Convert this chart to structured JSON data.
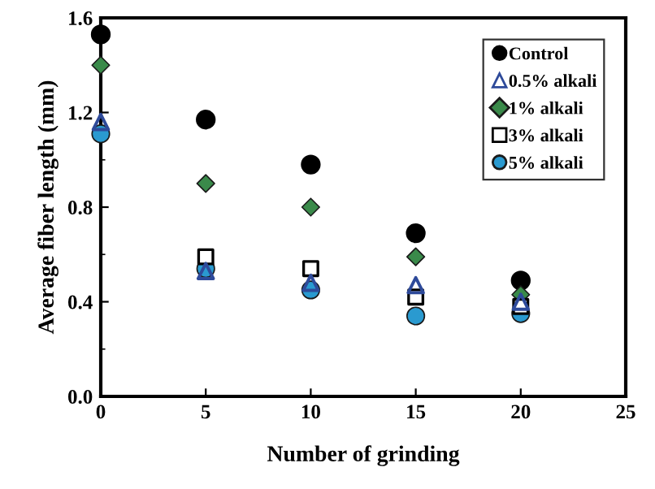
{
  "chart_data": {
    "type": "scatter",
    "xlabel": "Number of grinding",
    "ylabel": "Average fiber length (mm)",
    "x": [
      0,
      5,
      10,
      15,
      20
    ],
    "series": [
      {
        "name": "Control",
        "color": "#000000",
        "marker": "circle",
        "values": [
          1.53,
          1.17,
          0.98,
          0.69,
          0.49
        ]
      },
      {
        "name": "0.5% alkali",
        "color": "#2e4a9a",
        "marker": "triangle",
        "values": [
          1.16,
          0.53,
          0.48,
          0.47,
          0.4
        ]
      },
      {
        "name": "1% alkali",
        "color": "#3a8a4a",
        "marker": "diamond",
        "values": [
          1.4,
          0.9,
          0.8,
          0.59,
          0.43
        ]
      },
      {
        "name": "3% alkali",
        "color": "#000000",
        "marker": "square",
        "values": [
          null,
          0.59,
          0.54,
          0.42,
          0.38
        ]
      },
      {
        "name": "5% alkali",
        "color": "#2a9ad0",
        "marker": "circle",
        "values": [
          1.11,
          0.54,
          0.45,
          0.34,
          0.35
        ]
      }
    ],
    "xlim": [
      0,
      25
    ],
    "xticks": [
      0,
      5,
      10,
      15,
      20,
      25
    ],
    "ylim": [
      0,
      1.6
    ],
    "yticks": [
      {
        "value": 0,
        "label": "0.0"
      },
      0.4,
      0.8,
      1.2,
      1.6
    ],
    "grid": false,
    "legend": "top right"
  }
}
